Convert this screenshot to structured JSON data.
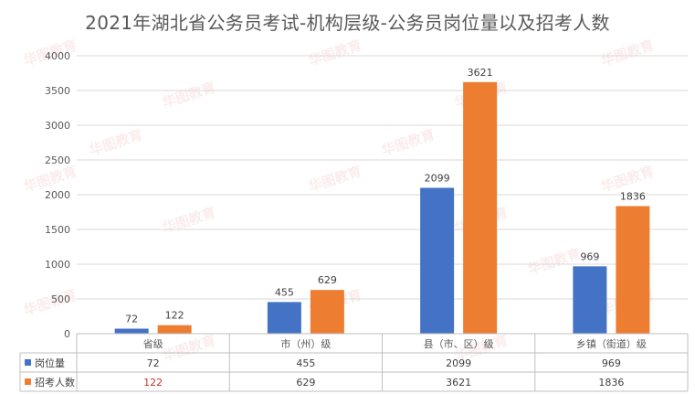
{
  "chart_data": {
    "type": "bar",
    "title": "2021年湖北省公务员考试-机构层级-公务员岗位量以及招考人数",
    "categories": [
      "省级",
      "市（州）级",
      "县（市、区）级",
      "乡镇（街道）级"
    ],
    "series": [
      {
        "name": "岗位量",
        "color": "#4472c4",
        "values": [
          72,
          455,
          2099,
          969
        ]
      },
      {
        "name": "招考人数",
        "color": "#ed7d31",
        "values": [
          122,
          629,
          3621,
          1836
        ]
      }
    ],
    "ylim": [
      0,
      4000
    ],
    "yticks": [
      0,
      500,
      1000,
      1500,
      2000,
      2500,
      3000,
      3500,
      4000
    ],
    "grid": true,
    "legend": "data-table"
  },
  "watermark": "华图教育"
}
